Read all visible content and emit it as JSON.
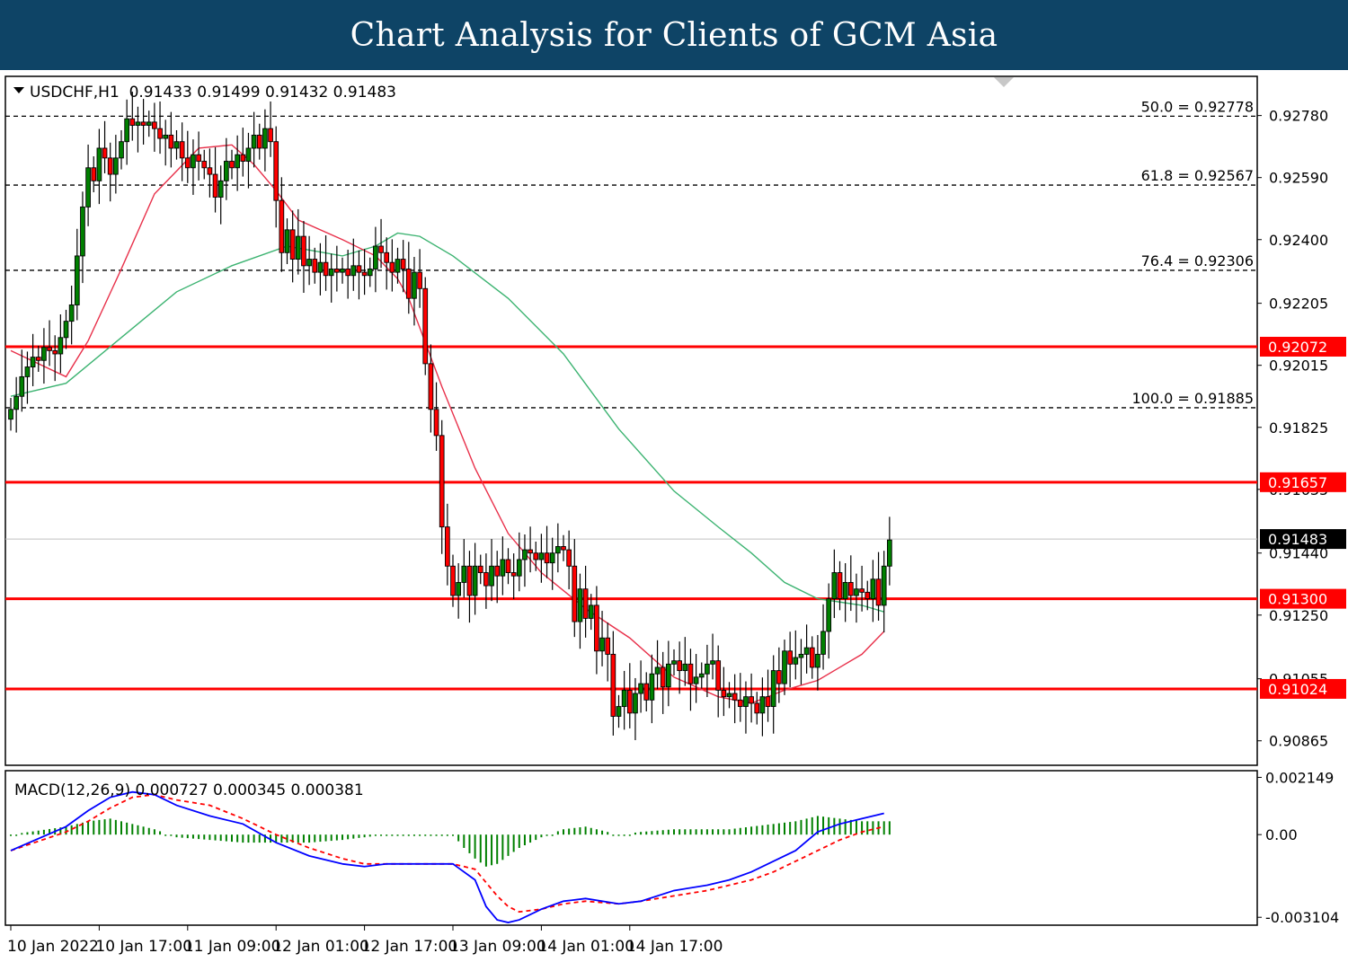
{
  "banner": {
    "title": "Chart Analysis for Clients of GCM Asia"
  },
  "chart_data": {
    "type": "candlestick",
    "symbol_header": "USDCHF,H1  0.91433 0.91499 0.91432 0.91483",
    "current_price": 0.91483,
    "colors": {
      "bull": "#008000",
      "bear": "#ff0000",
      "wick": "#000000",
      "ma_fast": "#e8304a",
      "ma_slow": "#3cb371",
      "sr_line": "#ff0000",
      "fib_line": "#000000",
      "macd": "#0000ff",
      "signal": "#ff0000",
      "histogram": "#008000"
    },
    "price_axis": {
      "range": [
        0.9079,
        0.929
      ],
      "ticks": [
        "0.92780",
        "0.92590",
        "0.92400",
        "0.92205",
        "0.92015",
        "0.91825",
        "0.91635",
        "0.91440",
        "0.91250",
        "0.91055",
        "0.90865"
      ]
    },
    "fibonacci_levels": [
      {
        "label": "50.0 = 0.92778",
        "price": 0.92778
      },
      {
        "label": "61.8 = 0.92567",
        "price": 0.92567
      },
      {
        "label": "76.4 = 0.92306",
        "price": 0.92306
      },
      {
        "label": "100.0 = 0.91885",
        "price": 0.91885
      }
    ],
    "support_resistance": [
      {
        "label": "0.92072",
        "price": 0.92072
      },
      {
        "label": "0.91657",
        "price": 0.91657
      },
      {
        "label": "0.91300",
        "price": 0.913
      },
      {
        "label": "0.91024",
        "price": 0.91024
      }
    ],
    "current_price_label": "0.91483",
    "time_axis": {
      "labels": [
        "10 Jan 2022",
        "10 Jan 17:00",
        "11 Jan 09:00",
        "12 Jan 01:00",
        "12 Jan 17:00",
        "13 Jan 09:00",
        "14 Jan 01:00",
        "14 Jan 17:00"
      ],
      "label_bar_index": [
        0,
        16,
        32,
        48,
        64,
        80,
        96,
        112
      ]
    },
    "close": [
      0.9188,
      0.9192,
      0.9198,
      0.9201,
      0.9204,
      0.9203,
      0.9207,
      0.9206,
      0.9205,
      0.921,
      0.9215,
      0.922,
      0.9235,
      0.925,
      0.9262,
      0.9258,
      0.9268,
      0.9265,
      0.926,
      0.9265,
      0.927,
      0.9277,
      0.9275,
      0.9276,
      0.9275,
      0.9276,
      0.9274,
      0.9271,
      0.9272,
      0.9268,
      0.927,
      0.9265,
      0.9262,
      0.9266,
      0.9264,
      0.9262,
      0.926,
      0.9253,
      0.9258,
      0.9264,
      0.9262,
      0.9266,
      0.9264,
      0.9268,
      0.9272,
      0.9268,
      0.9274,
      0.927,
      0.9252,
      0.9236,
      0.9243,
      0.9234,
      0.9241,
      0.9232,
      0.9234,
      0.923,
      0.9233,
      0.9229,
      0.9231,
      0.923,
      0.9231,
      0.9229,
      0.9232,
      0.923,
      0.9229,
      0.9231,
      0.9238,
      0.9236,
      0.9233,
      0.923,
      0.9234,
      0.9231,
      0.9222,
      0.923,
      0.9225,
      0.9202,
      0.9188,
      0.918,
      0.9152,
      0.914,
      0.9131,
      0.9135,
      0.914,
      0.9131,
      0.914,
      0.9138,
      0.9134,
      0.914,
      0.9137,
      0.9142,
      0.9138,
      0.9137,
      0.9142,
      0.9145,
      0.9144,
      0.9142,
      0.9144,
      0.9141,
      0.9144,
      0.9146,
      0.9145,
      0.914,
      0.9123,
      0.9133,
      0.9124,
      0.9128,
      0.9114,
      0.9118,
      0.9113,
      0.9094,
      0.9097,
      0.9102,
      0.9095,
      0.9101,
      0.9104,
      0.9099,
      0.9107,
      0.9109,
      0.9103,
      0.911,
      0.9111,
      0.9108,
      0.911,
      0.9104,
      0.9106,
      0.9107,
      0.911,
      0.9111,
      0.9102,
      0.91,
      0.9101,
      0.9099,
      0.9097,
      0.91,
      0.9098,
      0.9095,
      0.91,
      0.9097,
      0.9108,
      0.9104,
      0.9114,
      0.911,
      0.9112,
      0.9113,
      0.9115,
      0.9109,
      0.9113,
      0.912,
      0.913,
      0.9138,
      0.913,
      0.9135,
      0.9131,
      0.9133,
      0.9132,
      0.913,
      0.9136,
      0.9128,
      0.914,
      0.9148
    ],
    "ma_fast": {
      "x": [
        0,
        10,
        14,
        20,
        26,
        34,
        40,
        44,
        48,
        52,
        60,
        66,
        70,
        72,
        78,
        84,
        90,
        96,
        104,
        112,
        120,
        128,
        134,
        140,
        146,
        150,
        154,
        158
      ],
      "y": [
        0.9206,
        0.9198,
        0.9209,
        0.9231,
        0.9254,
        0.9268,
        0.9269,
        0.9263,
        0.9255,
        0.9246,
        0.924,
        0.9235,
        0.9228,
        0.9222,
        0.9195,
        0.917,
        0.915,
        0.9138,
        0.9127,
        0.9118,
        0.9106,
        0.91,
        0.9098,
        0.9102,
        0.9105,
        0.9109,
        0.9113,
        0.912
      ]
    },
    "ma_slow": {
      "x": [
        0,
        10,
        20,
        30,
        40,
        50,
        60,
        66,
        70,
        74,
        80,
        90,
        100,
        110,
        120,
        128,
        134,
        140,
        146,
        150,
        154,
        158
      ],
      "y": [
        0.9192,
        0.9196,
        0.921,
        0.9224,
        0.9232,
        0.9238,
        0.9235,
        0.9238,
        0.9242,
        0.9241,
        0.9235,
        0.9222,
        0.9205,
        0.9182,
        0.9163,
        0.9152,
        0.9144,
        0.9135,
        0.913,
        0.9129,
        0.9128,
        0.9126
      ]
    },
    "macd_panel": {
      "header": "MACD(12,26,9) 0.000727 0.000345 0.000381",
      "range": [
        -0.0034,
        0.0024
      ],
      "ticks": [
        "0.002149",
        "0.00",
        "-0.003104"
      ],
      "tick_values": [
        0.002149,
        0.0,
        -0.003104
      ],
      "macd_line": {
        "x": [
          0,
          10,
          14,
          18,
          22,
          26,
          30,
          36,
          42,
          48,
          54,
          60,
          64,
          68,
          72,
          76,
          80,
          84,
          86,
          88,
          90,
          92,
          96,
          100,
          104,
          110,
          114,
          120,
          126,
          130,
          134,
          138,
          142,
          146,
          150,
          154,
          158
        ],
        "y": [
          -0.0006,
          0.0003,
          0.0009,
          0.0014,
          0.0016,
          0.0015,
          0.0011,
          0.0007,
          0.0004,
          -0.0003,
          -0.0008,
          -0.0011,
          -0.0012,
          -0.0011,
          -0.0011,
          -0.0011,
          -0.0011,
          -0.0017,
          -0.0027,
          -0.0032,
          -0.0033,
          -0.0032,
          -0.0028,
          -0.0025,
          -0.0024,
          -0.0026,
          -0.0025,
          -0.0021,
          -0.0019,
          -0.0017,
          -0.0014,
          -0.001,
          -0.0006,
          0.0001,
          0.0004,
          0.0006,
          0.0008
        ]
      },
      "signal_line": {
        "x": [
          0,
          10,
          14,
          18,
          22,
          26,
          30,
          36,
          42,
          48,
          54,
          60,
          64,
          68,
          72,
          76,
          80,
          84,
          86,
          88,
          90,
          92,
          96,
          100,
          104,
          110,
          114,
          120,
          126,
          130,
          134,
          138,
          142,
          146,
          150,
          154,
          158
        ],
        "y": [
          -0.0006,
          0.0001,
          0.0005,
          0.001,
          0.0014,
          0.0015,
          0.0013,
          0.0011,
          0.0006,
          0.0,
          -0.0005,
          -0.0009,
          -0.0011,
          -0.0011,
          -0.0011,
          -0.0011,
          -0.0011,
          -0.0013,
          -0.0018,
          -0.0023,
          -0.0027,
          -0.0029,
          -0.0028,
          -0.0026,
          -0.0025,
          -0.0026,
          -0.0025,
          -0.0023,
          -0.0021,
          -0.0019,
          -0.0017,
          -0.0014,
          -0.001,
          -0.0006,
          -0.0002,
          0.0001,
          0.0003
        ]
      },
      "histogram": {
        "x": [
          0,
          10,
          14,
          18,
          22,
          26,
          30,
          36,
          42,
          48,
          54,
          60,
          64,
          68,
          72,
          76,
          80,
          82,
          84,
          86,
          88,
          90,
          92,
          96,
          100,
          104,
          110,
          114,
          120,
          126,
          130,
          134,
          138,
          142,
          146,
          150,
          154,
          158
        ],
        "y": [
          0.0,
          0.0003,
          0.0005,
          0.0006,
          0.0004,
          0.0002,
          -0.0001,
          -0.0002,
          -0.0003,
          -0.0003,
          -0.0003,
          -0.0002,
          -0.0001,
          0.0,
          0.0,
          0.0,
          0.0,
          -0.0005,
          -0.0009,
          -0.0012,
          -0.0011,
          -0.0008,
          -0.0005,
          -0.0001,
          0.0002,
          0.0003,
          0.0,
          0.0001,
          0.0002,
          0.0002,
          0.0002,
          0.0003,
          0.0004,
          0.0005,
          0.0007,
          0.0006,
          0.0005,
          0.0005
        ]
      }
    }
  }
}
